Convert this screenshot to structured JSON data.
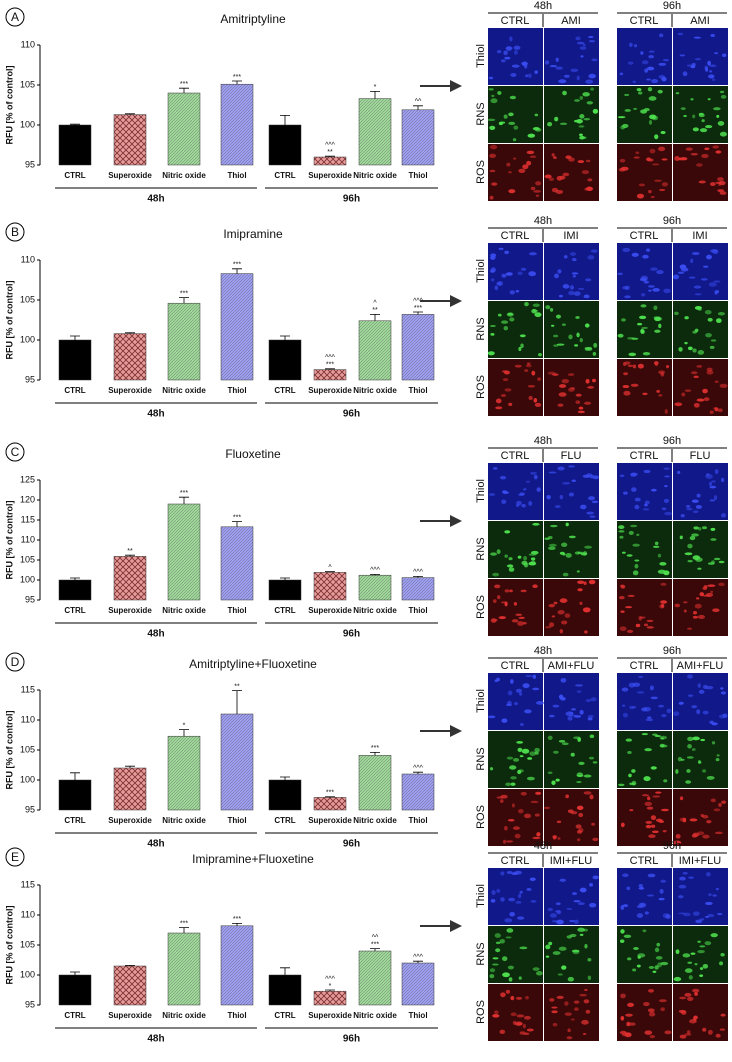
{
  "chart_data": [
    {
      "type": "bar",
      "panel": "A",
      "title": "Amitriptyline",
      "ylabel": "RFU [% of control]",
      "categories": [
        "CTRL",
        "Superoxide",
        "Nitric oxide",
        "Thiol",
        "CTRL",
        "Superoxide",
        "Nitric oxide",
        "Thiol"
      ],
      "groups": [
        "48h",
        "96h"
      ],
      "values": [
        100,
        101.3,
        104,
        105.1,
        100,
        96,
        103.3,
        101.9
      ],
      "errors": [
        0.1,
        0.1,
        0.6,
        0.4,
        1.2,
        0.1,
        0.9,
        0.5
      ],
      "annotations": [
        [],
        [],
        [
          "***"
        ],
        [
          "***"
        ],
        [],
        [
          "^^^",
          "**"
        ],
        [
          "*"
        ],
        [
          "^^"
        ]
      ],
      "colors": [
        "#000000",
        "#e79a9a",
        "#9fd69a",
        "#9e9ef0"
      ],
      "ylim": [
        95,
        110
      ],
      "yticks": [
        95,
        100,
        105,
        110
      ]
    },
    {
      "type": "bar",
      "panel": "B",
      "title": "Imipramine",
      "ylabel": "RFU [% of control]",
      "categories": [
        "CTRL",
        "Superoxide",
        "Nitric oxide",
        "Thiol",
        "CTRL",
        "Superoxide",
        "Nitric oxide",
        "Thiol"
      ],
      "groups": [
        "48h",
        "96h"
      ],
      "values": [
        100,
        100.8,
        104.6,
        108.3,
        100,
        96.3,
        102.4,
        103.2
      ],
      "errors": [
        0.5,
        0.1,
        0.7,
        0.6,
        0.5,
        0.1,
        0.8,
        0.3
      ],
      "annotations": [
        [],
        [],
        [
          "***"
        ],
        [
          "***"
        ],
        [],
        [
          "^^^",
          "***"
        ],
        [
          "^",
          "**"
        ],
        [
          "^^^",
          "***"
        ]
      ],
      "colors": [
        "#000000",
        "#e79a9a",
        "#9fd69a",
        "#9e9ef0"
      ],
      "ylim": [
        95,
        110
      ],
      "yticks": [
        95,
        100,
        105,
        110
      ]
    },
    {
      "type": "bar",
      "panel": "C",
      "title": "Fluoxetine",
      "ylabel": "RFU [% of control]",
      "categories": [
        "CTRL",
        "Superoxide",
        "Nitric oxide",
        "Thiol",
        "CTRL",
        "Superoxide",
        "Nitric oxide",
        "Thiol"
      ],
      "groups": [
        "48h",
        "96h"
      ],
      "values": [
        100,
        105.9,
        119,
        113.3,
        100,
        101.9,
        101.2,
        100.6
      ],
      "errors": [
        0.5,
        0.3,
        1.7,
        1.3,
        0.5,
        0.2,
        0.2,
        0.3
      ],
      "annotations": [
        [],
        [
          "**"
        ],
        [
          "***"
        ],
        [
          "***"
        ],
        [],
        [
          "^"
        ],
        [
          "^^^"
        ],
        [
          "^^^"
        ]
      ],
      "colors": [
        "#000000",
        "#e79a9a",
        "#9fd69a",
        "#9e9ef0"
      ],
      "ylim": [
        95,
        125
      ],
      "yticks": [
        95,
        100,
        105,
        110,
        115,
        120,
        125
      ]
    },
    {
      "type": "bar",
      "panel": "D",
      "title": "Amitriptyline+Fluoxetine",
      "ylabel": "RFU [% of control]",
      "categories": [
        "CTRL",
        "Superoxide",
        "Nitric oxide",
        "Thiol",
        "CTRL",
        "Superoxide",
        "Nitric oxide",
        "Thiol"
      ],
      "groups": [
        "48h",
        "96h"
      ],
      "values": [
        100,
        102,
        107.3,
        111,
        100,
        97.1,
        104.1,
        101
      ],
      "errors": [
        1.2,
        0.3,
        1.1,
        3.9,
        0.5,
        0.1,
        0.5,
        0.3
      ],
      "annotations": [
        [],
        [],
        [
          "*"
        ],
        [
          "**"
        ],
        [],
        [
          "***"
        ],
        [
          "***"
        ],
        [
          "^^^"
        ]
      ],
      "colors": [
        "#000000",
        "#e79a9a",
        "#9fd69a",
        "#9e9ef0"
      ],
      "ylim": [
        95,
        115
      ],
      "yticks": [
        95,
        100,
        105,
        110,
        115
      ]
    },
    {
      "type": "bar",
      "panel": "E",
      "title": "Imipramine+Fluoxetine",
      "ylabel": "RFU [% of control]",
      "categories": [
        "CTRL",
        "Superoxide",
        "Nitric oxide",
        "Thiol",
        "CTRL",
        "Superoxide",
        "Nitric oxide",
        "Thiol"
      ],
      "groups": [
        "48h",
        "96h"
      ],
      "values": [
        100,
        101.5,
        107,
        108.2,
        100,
        97.3,
        104,
        102
      ],
      "errors": [
        0.5,
        0.1,
        0.9,
        0.4,
        1.2,
        0.2,
        0.4,
        0.3
      ],
      "annotations": [
        [],
        [],
        [
          "***"
        ],
        [
          "***"
        ],
        [],
        [
          "^^^",
          "*"
        ],
        [
          "^^",
          "***"
        ],
        [
          "^^^"
        ]
      ],
      "colors": [
        "#000000",
        "#e79a9a",
        "#9fd69a",
        "#9e9ef0"
      ],
      "ylim": [
        95,
        115
      ],
      "yticks": [
        95,
        100,
        105,
        110,
        115
      ]
    }
  ],
  "micrographs": [
    {
      "times": [
        "48h",
        "96h"
      ],
      "columns": [
        "CTRL",
        "AMI"
      ],
      "rows": [
        "Thiol",
        "RNS",
        "ROS"
      ]
    },
    {
      "times": [
        "48h",
        "96h"
      ],
      "columns": [
        "CTRL",
        "IMI"
      ],
      "rows": [
        "Thiol",
        "RNS",
        "ROS"
      ]
    },
    {
      "times": [
        "48h",
        "96h"
      ],
      "columns": [
        "CTRL",
        "FLU"
      ],
      "rows": [
        "Thiol",
        "RNS",
        "ROS"
      ]
    },
    {
      "times": [
        "48h",
        "96h"
      ],
      "columns": [
        "CTRL",
        "AMI+FLU"
      ],
      "rows": [
        "Thiol",
        "RNS",
        "ROS"
      ]
    },
    {
      "times": [
        "48h",
        "96h"
      ],
      "columns": [
        "CTRL",
        "IMI+FLU"
      ],
      "rows": [
        "Thiol",
        "RNS",
        "ROS"
      ]
    }
  ]
}
